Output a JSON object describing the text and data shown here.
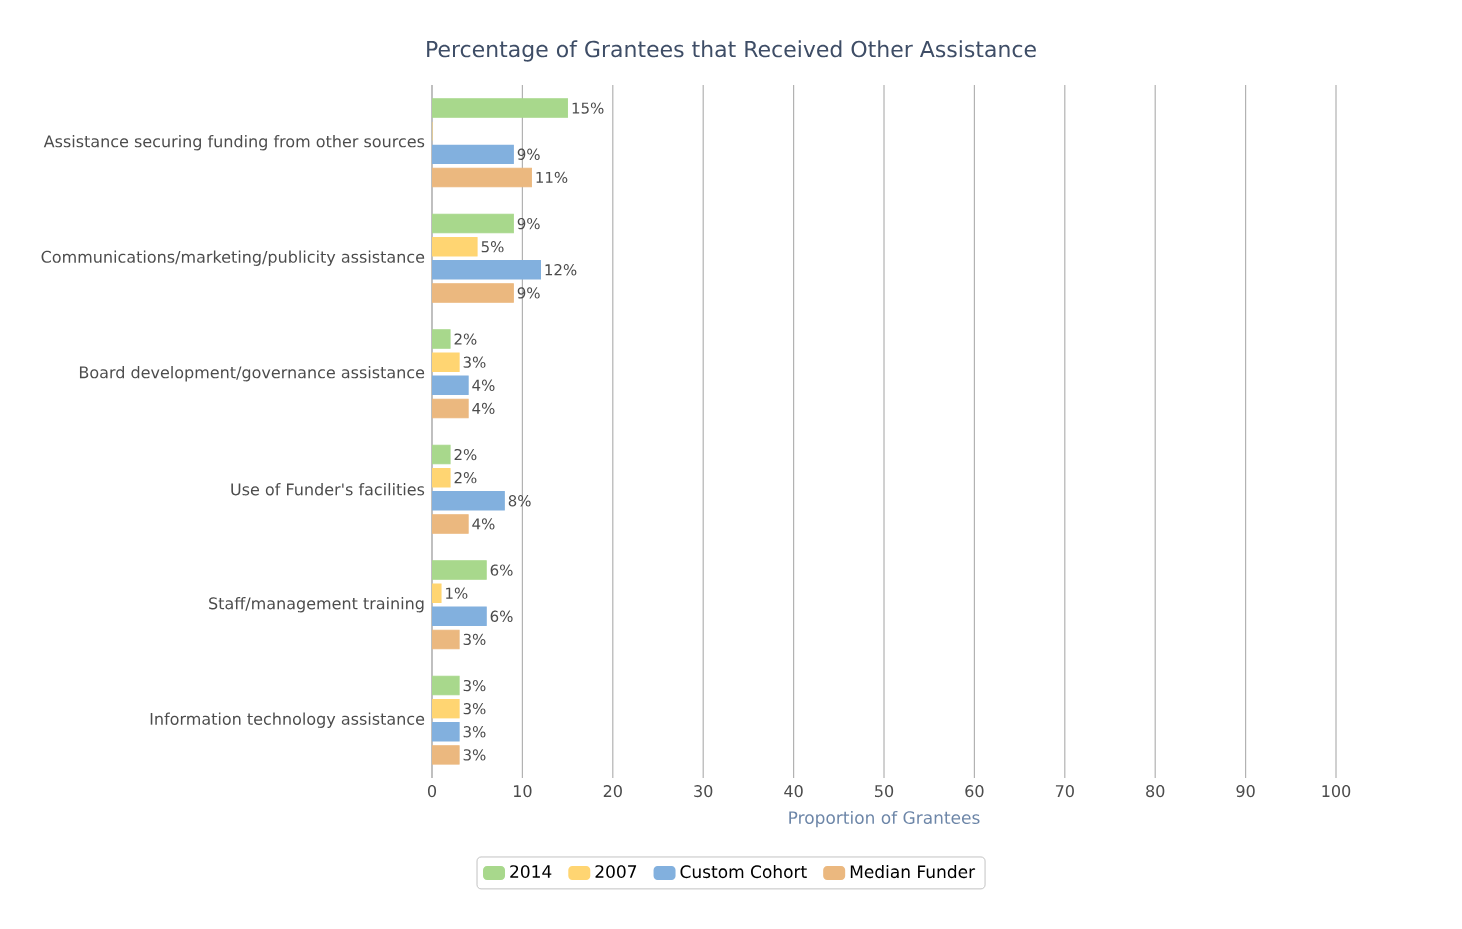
{
  "chart_data": {
    "type": "bar",
    "orientation": "horizontal",
    "title": "Percentage of Grantees that Received Other Assistance",
    "xlabel": "Proportion of Grantees",
    "categories": [
      "Assistance securing funding from other sources",
      "Communications/marketing/publicity assistance",
      "Board development/governance assistance",
      "Use of Funder's facilities",
      "Staff/management training",
      "Information technology assistance"
    ],
    "series": [
      {
        "name": "2014",
        "color": "#a8d88c",
        "values": [
          15,
          9,
          2,
          2,
          6,
          3
        ],
        "value_labels": [
          "15%",
          "9%",
          "2%",
          "2%",
          "6%",
          "3%"
        ]
      },
      {
        "name": "2007",
        "color": "#ffd572",
        "values": [
          0,
          5,
          3,
          2,
          1,
          3
        ],
        "value_labels": [
          null,
          "5%",
          "3%",
          "2%",
          "1%",
          "3%"
        ]
      },
      {
        "name": "Custom Cohort",
        "color": "#82b0de",
        "values": [
          9,
          12,
          4,
          8,
          6,
          3
        ],
        "value_labels": [
          "9%",
          "12%",
          "4%",
          "8%",
          "6%",
          "3%"
        ]
      },
      {
        "name": "Median Funder",
        "color": "#ebb87f",
        "values": [
          11,
          9,
          4,
          4,
          3,
          3
        ],
        "value_labels": [
          "11%",
          "9%",
          "4%",
          "4%",
          "3%",
          "3%"
        ]
      }
    ],
    "xlim": [
      0,
      100
    ],
    "xticks": [
      0,
      10,
      20,
      30,
      40,
      50,
      60,
      70,
      80,
      90,
      100
    ],
    "grid": "x",
    "legend": "bottom"
  }
}
